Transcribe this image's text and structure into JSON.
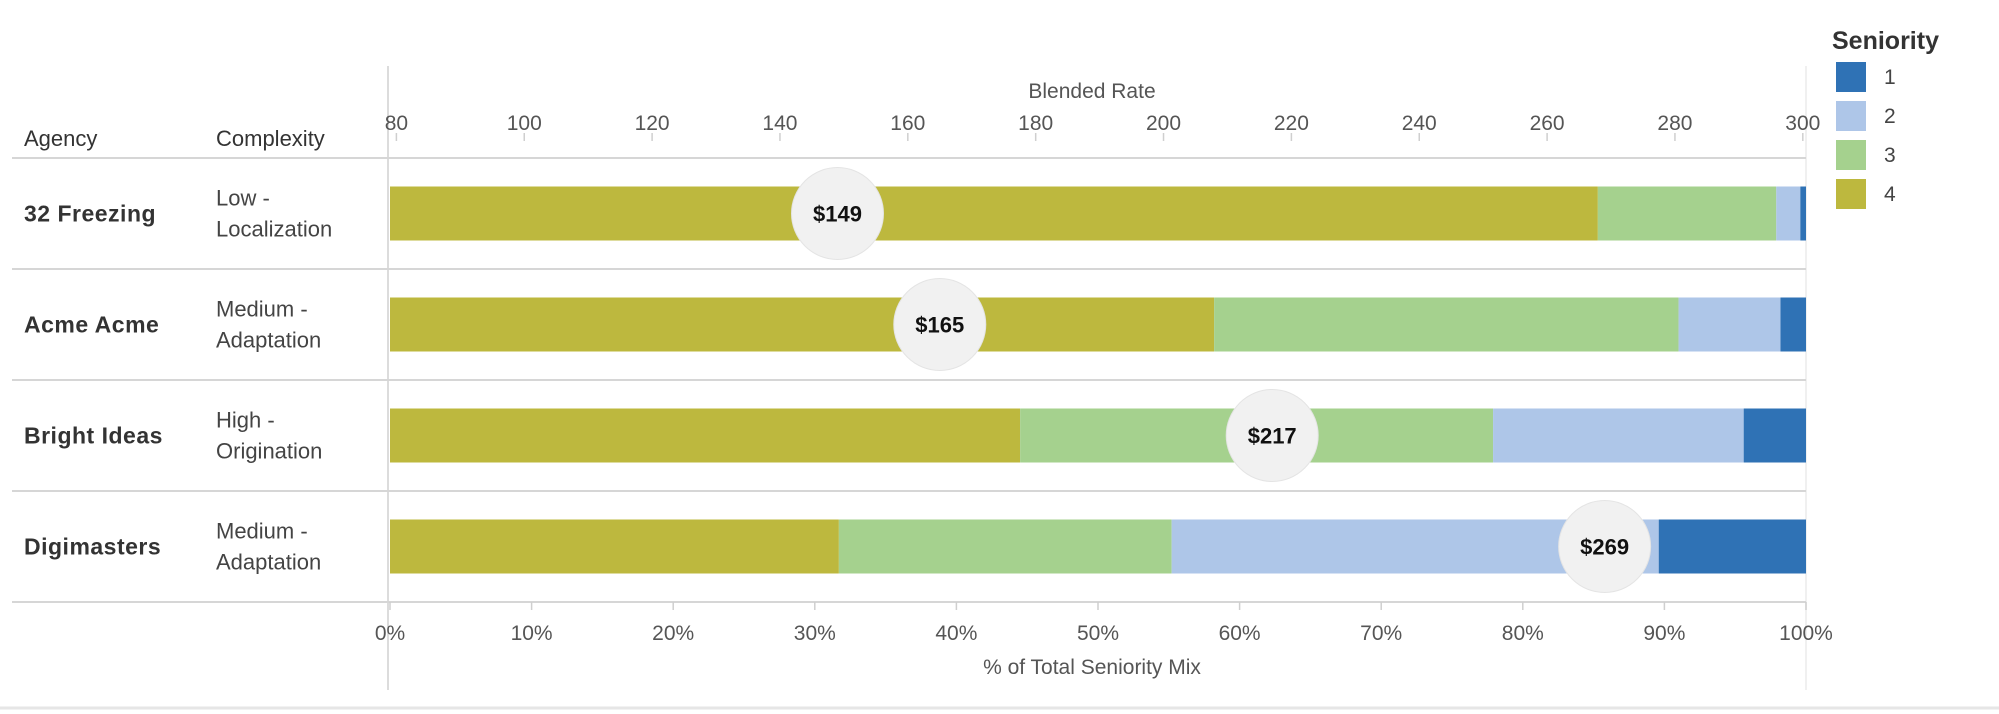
{
  "chart_data": {
    "type": "bar",
    "orientation": "horizontal",
    "stacked": true,
    "column_headers": {
      "agency": "Agency",
      "complexity": "Complexity"
    },
    "rows": [
      {
        "agency": "32 Freezing",
        "complexity_line1": "Low -",
        "complexity_line2": "Localization",
        "blended_rate": 149,
        "rate_label": "$149",
        "mix": {
          "4": 85.3,
          "3": 12.6,
          "2": 1.7,
          "1": 0.4
        }
      },
      {
        "agency": "Acme Acme",
        "complexity_line1": "Medium -",
        "complexity_line2": "Adaptation",
        "blended_rate": 165,
        "rate_label": "$165",
        "mix": {
          "4": 58.2,
          "3": 32.8,
          "2": 7.2,
          "1": 1.8
        }
      },
      {
        "agency": "Bright Ideas",
        "complexity_line1": "High -",
        "complexity_line2": "Origination",
        "blended_rate": 217,
        "rate_label": "$217",
        "mix": {
          "4": 44.5,
          "3": 33.4,
          "2": 17.7,
          "1": 4.4
        }
      },
      {
        "agency": "Digimasters",
        "complexity_line1": "Medium -",
        "complexity_line2": "Adaptation",
        "blended_rate": 269,
        "rate_label": "$269",
        "mix": {
          "4": 31.7,
          "3": 23.5,
          "2": 34.4,
          "1": 10.4
        }
      }
    ],
    "segment_order": [
      "4",
      "3",
      "2",
      "1"
    ],
    "top_axis": {
      "title": "Blended Rate",
      "range": [
        79,
        300.5
      ],
      "ticks": [
        80,
        100,
        120,
        140,
        160,
        180,
        200,
        220,
        240,
        260,
        280,
        300
      ]
    },
    "bottom_axis": {
      "title": "% of Total Seniority Mix",
      "range": [
        0,
        100
      ],
      "ticks": [
        0,
        10,
        20,
        30,
        40,
        50,
        60,
        70,
        80,
        90,
        100
      ],
      "tick_labels": [
        "0%",
        "10%",
        "20%",
        "30%",
        "40%",
        "50%",
        "60%",
        "70%",
        "80%",
        "90%",
        "100%"
      ]
    },
    "legend": {
      "title": "Seniority",
      "position": "top-right",
      "items": [
        {
          "key": "1",
          "label": "1",
          "color": "#2f72b5"
        },
        {
          "key": "2",
          "label": "2",
          "color": "#aec6e8"
        },
        {
          "key": "3",
          "label": "3",
          "color": "#a5d18e"
        },
        {
          "key": "4",
          "label": "4",
          "color": "#bdb83e"
        }
      ]
    }
  }
}
